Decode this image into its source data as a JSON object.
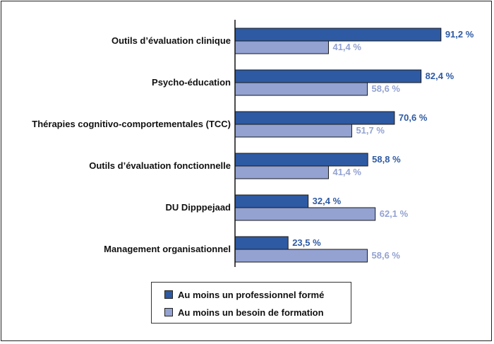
{
  "chart_data": {
    "type": "bar",
    "orientation": "horizontal",
    "categories": [
      "Outils d’évaluation clinique",
      "Psycho-éducation",
      "Thérapies cognitivo-comportementales (TCC)",
      "Outils d’évaluation fonctionnelle",
      "DU Dipppejaad",
      "Management organisationnel"
    ],
    "series": [
      {
        "name": "Au moins un professionnel formé",
        "color": "#2e5aa3",
        "values": [
          91.2,
          82.4,
          70.6,
          58.8,
          32.4,
          23.5
        ],
        "labels": [
          "91,2 %",
          "82,4 %",
          "70,6 %",
          "58,8 %",
          "32,4 %",
          "23,5 %"
        ]
      },
      {
        "name": "Au moins un besoin de formation",
        "color": "#93a2d1",
        "values": [
          41.4,
          58.6,
          51.7,
          41.4,
          62.1,
          58.6
        ],
        "labels": [
          "41,4 %",
          "58,6 %",
          "51,7 %",
          "41,4 %",
          "62,1 %",
          "58,6 %"
        ]
      }
    ],
    "xlim": [
      0,
      100
    ],
    "grid": false,
    "legend_position": "bottom-center"
  }
}
